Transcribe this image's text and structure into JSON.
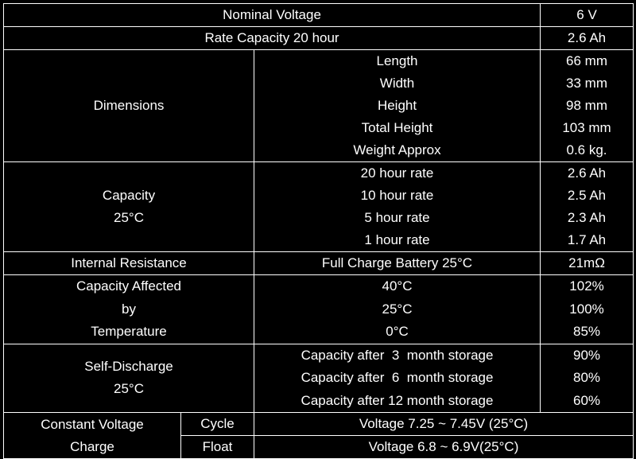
{
  "nominal_voltage": {
    "label": "Nominal Voltage",
    "value": "6 V"
  },
  "rate_capacity": {
    "label": "Rate Capacity 20 hour",
    "value": "2.6 Ah"
  },
  "dimensions": {
    "label": "Dimensions",
    "items": [
      {
        "name": "Length",
        "value": "66 mm"
      },
      {
        "name": "Width",
        "value": "33 mm"
      },
      {
        "name": "Height",
        "value": "98 mm"
      },
      {
        "name": "Total Height",
        "value": "103 mm"
      },
      {
        "name": "Weight Approx",
        "value": "0.6 kg."
      }
    ]
  },
  "capacity": {
    "label": [
      "Capacity",
      "25°C"
    ],
    "items": [
      {
        "name": "20 hour rate",
        "value": "2.6 Ah"
      },
      {
        "name": "10 hour rate",
        "value": "2.5 Ah"
      },
      {
        "name": "5 hour rate",
        "value": "2.3 Ah"
      },
      {
        "name": "1 hour rate",
        "value": "1.7 Ah"
      }
    ]
  },
  "internal_resistance": {
    "label": "Internal Resistance",
    "condition": "Full Charge Battery 25°C",
    "value": "21mΩ"
  },
  "temperature": {
    "label": [
      "Capacity Affected",
      "by",
      "Temperature"
    ],
    "items": [
      {
        "name": "40°C",
        "value": "102%"
      },
      {
        "name": "25°C",
        "value": "100%"
      },
      {
        "name": "0°C",
        "value": "85%"
      }
    ]
  },
  "self_discharge": {
    "label": [
      "Self-Discharge",
      "25°C"
    ],
    "items": [
      {
        "name": "Capacity after  3  month storage",
        "value": "90%"
      },
      {
        "name": "Capacity after  6  month storage",
        "value": "80%"
      },
      {
        "name": "Capacity after 12 month storage",
        "value": "60%"
      }
    ]
  },
  "charge": {
    "label": [
      "Constant Voltage",
      "Charge"
    ],
    "modes": [
      {
        "name": "Cycle",
        "value": "Voltage 7.25 ~ 7.45V (25°C)"
      },
      {
        "name": "Float",
        "value": "Voltage 6.8 ~ 6.9V(25°C)"
      }
    ]
  }
}
